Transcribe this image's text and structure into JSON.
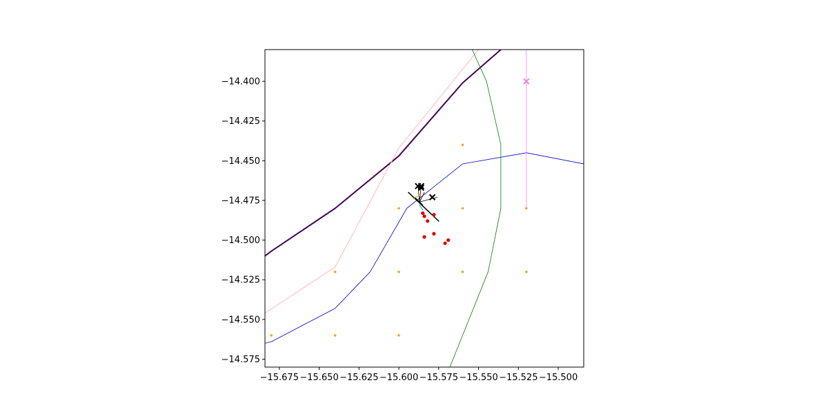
{
  "chart_data": {
    "type": "scatter",
    "title": "",
    "xlabel": "",
    "ylabel": "",
    "xlim": [
      -15.684,
      -15.484
    ],
    "ylim": [
      -14.58,
      -14.38
    ],
    "grid": false,
    "xticks": [
      {
        "value": -15.675,
        "label": "−15.675"
      },
      {
        "value": -15.65,
        "label": "−15.650"
      },
      {
        "value": -15.625,
        "label": "−15.625"
      },
      {
        "value": -15.6,
        "label": "−15.600"
      },
      {
        "value": -15.575,
        "label": "−15.575"
      },
      {
        "value": -15.55,
        "label": "−15.550"
      },
      {
        "value": -15.525,
        "label": "−15.525"
      },
      {
        "value": -15.5,
        "label": "−15.500"
      }
    ],
    "yticks": [
      {
        "value": -14.4,
        "label": "−14.400"
      },
      {
        "value": -14.425,
        "label": "−14.425"
      },
      {
        "value": -14.45,
        "label": "−14.450"
      },
      {
        "value": -14.475,
        "label": "−14.475"
      },
      {
        "value": -14.5,
        "label": "−14.500"
      },
      {
        "value": -14.525,
        "label": "−14.525"
      },
      {
        "value": -14.55,
        "label": "−14.550"
      },
      {
        "value": -14.575,
        "label": "−14.575"
      }
    ],
    "lines": [
      {
        "id": "dark-purple-line",
        "color": "#440154",
        "width": 2,
        "points": [
          [
            -15.684,
            -14.51
          ],
          [
            -15.68,
            -14.507
          ],
          [
            -15.64,
            -14.48
          ],
          [
            -15.6,
            -14.447
          ],
          [
            -15.56,
            -14.401
          ],
          [
            -15.536,
            -14.38
          ]
        ]
      },
      {
        "id": "pink-line",
        "color": "#ffb6c1",
        "width": 1,
        "points": [
          [
            -15.684,
            -14.546
          ],
          [
            -15.64,
            -14.517
          ],
          [
            -15.6,
            -14.442
          ],
          [
            -15.55,
            -14.38
          ]
        ]
      },
      {
        "id": "blue-line",
        "color": "#0000cc",
        "width": 0.8,
        "points": [
          [
            -15.684,
            -14.565
          ],
          [
            -15.68,
            -14.564
          ],
          [
            -15.64,
            -14.543
          ],
          [
            -15.618,
            -14.52
          ],
          [
            -15.595,
            -14.48
          ],
          [
            -15.56,
            -14.452
          ],
          [
            -15.52,
            -14.445
          ],
          [
            -15.484,
            -14.452
          ]
        ]
      },
      {
        "id": "green-line",
        "color": "#008000",
        "width": 0.8,
        "points": [
          [
            -15.554,
            -14.38
          ],
          [
            -15.545,
            -14.4
          ],
          [
            -15.536,
            -14.44
          ],
          [
            -15.536,
            -14.48
          ],
          [
            -15.544,
            -14.52
          ],
          [
            -15.56,
            -14.56
          ],
          [
            -15.568,
            -14.58
          ]
        ]
      },
      {
        "id": "violet-line",
        "color": "#ee82ee",
        "width": 0.8,
        "points": [
          [
            -15.52,
            -14.38
          ],
          [
            -15.52,
            -14.48
          ]
        ]
      }
    ],
    "segments": [
      {
        "color": "#000000",
        "width": 1.5,
        "points": [
          [
            -15.594,
            -14.47
          ],
          [
            -15.575,
            -14.488
          ]
        ]
      },
      {
        "color": "#000000",
        "width": 1.2,
        "points": [
          [
            -15.59,
            -14.473
          ],
          [
            -15.585,
            -14.478
          ]
        ]
      },
      {
        "color": "#000000",
        "width": 0.8,
        "points": [
          [
            -15.587,
            -14.476
          ],
          [
            -15.576,
            -14.473
          ]
        ]
      },
      {
        "color": "#000000",
        "width": 0.8,
        "points": [
          [
            -15.587,
            -14.476
          ],
          [
            -15.588,
            -14.466
          ]
        ]
      },
      {
        "color": "#000000",
        "width": 0.8,
        "points": [
          [
            -15.587,
            -14.476
          ],
          [
            -15.586,
            -14.466
          ]
        ]
      },
      {
        "color": "#000000",
        "width": 0.8,
        "points": [
          [
            -15.587,
            -14.476
          ],
          [
            -15.584,
            -14.47
          ]
        ]
      },
      {
        "color": "#ffa500",
        "width": 1.2,
        "points": [
          [
            -15.591,
            -14.474
          ],
          [
            -15.586,
            -14.471
          ]
        ]
      },
      {
        "color": "#20b2aa",
        "width": 1.2,
        "points": [
          [
            -15.587,
            -14.478
          ],
          [
            -15.585,
            -14.481
          ]
        ]
      }
    ],
    "series": [
      {
        "marker": "dot",
        "color": "#f5a623",
        "size": 1.8,
        "points": [
          [
            -15.68,
            -14.56
          ],
          [
            -15.64,
            -14.52
          ],
          [
            -15.64,
            -14.56
          ],
          [
            -15.6,
            -14.48
          ],
          [
            -15.6,
            -14.52
          ],
          [
            -15.6,
            -14.56
          ],
          [
            -15.56,
            -14.44
          ],
          [
            -15.56,
            -14.48
          ],
          [
            -15.56,
            -14.52
          ],
          [
            -15.52,
            -14.48
          ],
          [
            -15.52,
            -14.52
          ]
        ]
      },
      {
        "marker": "dot",
        "color": "#e00000",
        "size": 2.6,
        "points": [
          [
            -15.585,
            -14.483
          ],
          [
            -15.584,
            -14.485
          ],
          [
            -15.582,
            -14.488
          ],
          [
            -15.578,
            -14.484
          ],
          [
            -15.584,
            -14.498
          ],
          [
            -15.578,
            -14.496
          ],
          [
            -15.571,
            -14.502
          ],
          [
            -15.569,
            -14.5
          ]
        ]
      },
      {
        "marker": "x",
        "color": "#000000",
        "size": 4,
        "points": [
          [
            -15.588,
            -14.466
          ],
          [
            -15.586,
            -14.466
          ],
          [
            -15.586,
            -14.467
          ],
          [
            -15.579,
            -14.473
          ]
        ]
      },
      {
        "marker": "x",
        "color": "#ee82ee",
        "size": 4,
        "points": [
          [
            -15.52,
            -14.4
          ]
        ]
      }
    ]
  }
}
